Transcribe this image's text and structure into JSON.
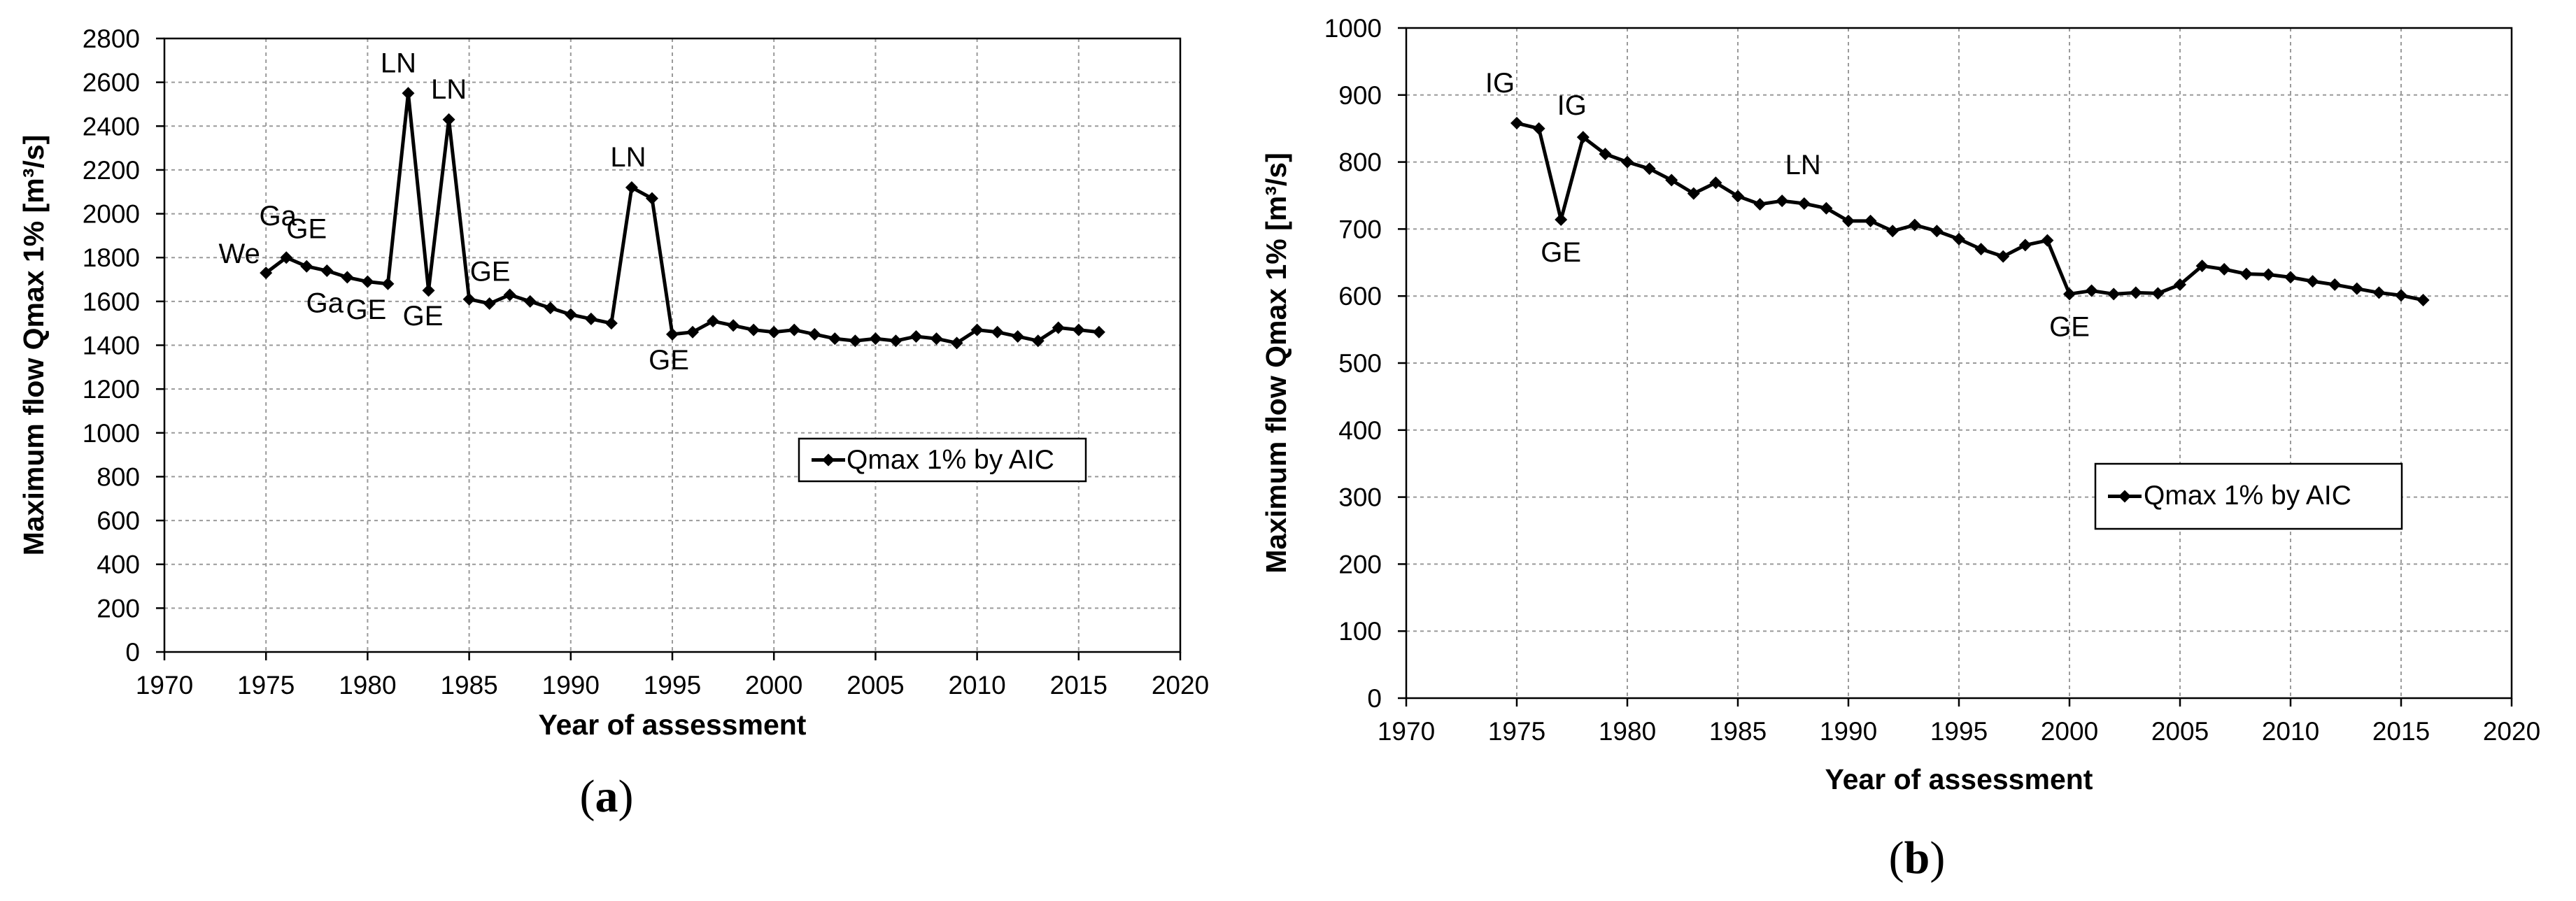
{
  "chart_data": [
    {
      "panel": "a",
      "type": "line",
      "xlabel": "Year of assessment",
      "ylabel": "Maximum flow Qmax 1% [m³/s]",
      "xlim": [
        1970,
        2020
      ],
      "ylim": [
        0,
        2800
      ],
      "xticks": [
        1970,
        1975,
        1980,
        1985,
        1990,
        1995,
        2000,
        2005,
        2010,
        2015,
        2020
      ],
      "yticks": [
        0,
        200,
        400,
        600,
        800,
        1000,
        1200,
        1400,
        1600,
        1800,
        2000,
        2200,
        2400,
        2600,
        2800
      ],
      "grid": true,
      "legend_position": "right",
      "series": [
        {
          "name": "Qmax 1% by AIC",
          "marker": "diamond",
          "x": [
            1975,
            1976,
            1977,
            1978,
            1979,
            1980,
            1981,
            1982,
            1983,
            1984,
            1985,
            1986,
            1987,
            1988,
            1989,
            1990,
            1991,
            1992,
            1993,
            1994,
            1995,
            1996,
            1997,
            1998,
            1999,
            2000,
            2001,
            2002,
            2003,
            2004,
            2005,
            2006,
            2007,
            2008,
            2009,
            2010,
            2011,
            2012,
            2013,
            2014,
            2015,
            2016
          ],
          "y": [
            1730,
            1800,
            1760,
            1740,
            1710,
            1690,
            1680,
            2550,
            1650,
            2430,
            1610,
            1590,
            1630,
            1600,
            1570,
            1540,
            1520,
            1500,
            2120,
            2070,
            1450,
            1460,
            1510,
            1490,
            1470,
            1460,
            1470,
            1450,
            1430,
            1420,
            1430,
            1420,
            1440,
            1430,
            1410,
            1470,
            1460,
            1440,
            1420,
            1480,
            1470,
            1460
          ]
        }
      ],
      "annotations": [
        {
          "text": "We",
          "x": 1975,
          "y": 1730
        },
        {
          "text": "Ga",
          "x": 1976,
          "y": 1800
        },
        {
          "text": "GE",
          "x": 1977,
          "y": 1760
        },
        {
          "text": "Ga",
          "x": 1979,
          "y": 1710
        },
        {
          "text": "GE",
          "x": 1981,
          "y": 1680
        },
        {
          "text": "LN",
          "x": 1982,
          "y": 2550
        },
        {
          "text": "GE",
          "x": 1983,
          "y": 1650
        },
        {
          "text": "LN",
          "x": 1984,
          "y": 2430
        },
        {
          "text": "GE",
          "x": 1985,
          "y": 1610
        },
        {
          "text": "LN",
          "x": 1993,
          "y": 2120
        },
        {
          "text": "GE",
          "x": 1995,
          "y": 1450
        }
      ]
    },
    {
      "panel": "b",
      "type": "line",
      "xlabel": "Year of assessment",
      "ylabel": "Maximum flow Qmax 1% [m³/s]",
      "xlim": [
        1970,
        2020
      ],
      "ylim": [
        0,
        1000
      ],
      "xticks": [
        1970,
        1975,
        1980,
        1985,
        1990,
        1995,
        2000,
        2005,
        2010,
        2015,
        2020
      ],
      "yticks": [
        0,
        100,
        200,
        300,
        400,
        500,
        600,
        700,
        800,
        900,
        1000
      ],
      "grid": true,
      "legend_position": "right",
      "series": [
        {
          "name": "Qmax 1% by AIC",
          "marker": "diamond",
          "x": [
            1975,
            1976,
            1977,
            1978,
            1979,
            1980,
            1981,
            1982,
            1983,
            1984,
            1985,
            1986,
            1987,
            1988,
            1989,
            1990,
            1991,
            1992,
            1993,
            1994,
            1995,
            1996,
            1997,
            1998,
            1999,
            2000,
            2001,
            2002,
            2003,
            2004,
            2005,
            2006,
            2007,
            2008,
            2009,
            2010,
            2011,
            2012,
            2013,
            2014,
            2015,
            2016
          ],
          "y": [
            858,
            850,
            714,
            837,
            812,
            800,
            790,
            773,
            753,
            769,
            749,
            737,
            742,
            738,
            731,
            712,
            712,
            697,
            706,
            697,
            685,
            670,
            659,
            676,
            683,
            603,
            608,
            603,
            605,
            604,
            617,
            645,
            640,
            633,
            632,
            628,
            622,
            617,
            611,
            605,
            601,
            594
          ]
        }
      ],
      "annotations": [
        {
          "text": "IG",
          "x": 1975,
          "y": 858
        },
        {
          "text": "GE",
          "x": 1977,
          "y": 714
        },
        {
          "text": "IG",
          "x": 1978,
          "y": 837
        },
        {
          "text": "LN",
          "x": 1987,
          "y": 742
        },
        {
          "text": "GE",
          "x": 2000,
          "y": 603
        }
      ]
    }
  ],
  "panel_labels": {
    "a": "a",
    "b": "b"
  }
}
